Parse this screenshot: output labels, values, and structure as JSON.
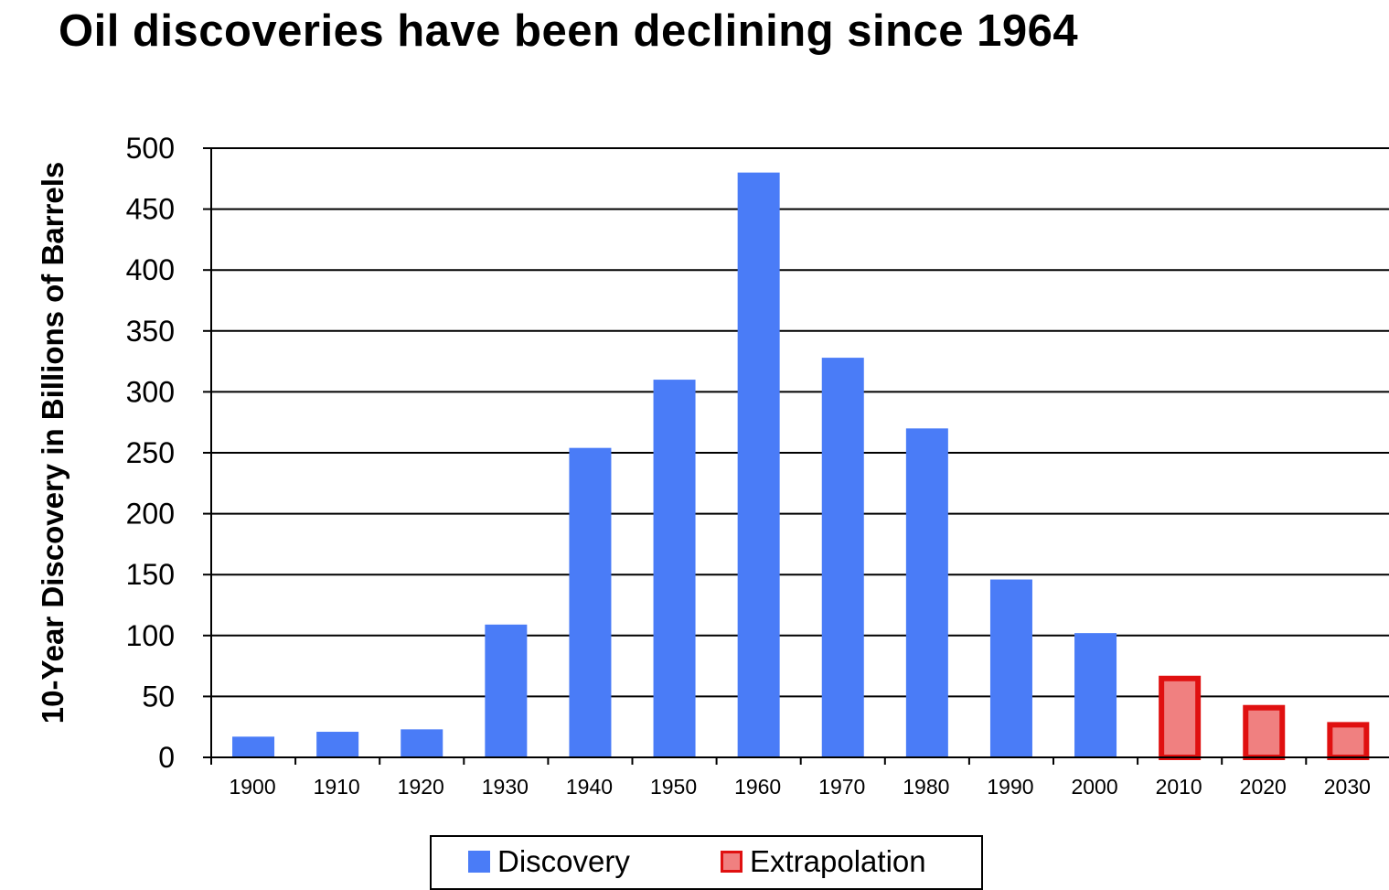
{
  "chart_data": {
    "type": "bar",
    "title": "Oil discoveries have been declining since 1964",
    "ylabel": "10-Year Discovery in Billions of Barrels",
    "xlabel": "",
    "ylim": [
      0,
      500
    ],
    "yticks": [
      0,
      50,
      100,
      150,
      200,
      250,
      300,
      350,
      400,
      450,
      500
    ],
    "grid": true,
    "legend_position": "bottom",
    "categories": [
      "1900",
      "1910",
      "1920",
      "1930",
      "1940",
      "1950",
      "1960",
      "1970",
      "1980",
      "1990",
      "2000",
      "2010",
      "2020",
      "2030"
    ],
    "series": [
      {
        "name": "Discovery",
        "color": "#4a7cf7",
        "values": [
          17,
          21,
          23,
          109,
          254,
          310,
          480,
          328,
          270,
          146,
          102,
          null,
          null,
          null
        ]
      },
      {
        "name": "Extrapolation",
        "color": "#f08080",
        "border_color": "#e01010",
        "values": [
          null,
          null,
          null,
          null,
          null,
          null,
          null,
          null,
          null,
          null,
          null,
          67,
          43,
          29
        ]
      }
    ]
  }
}
